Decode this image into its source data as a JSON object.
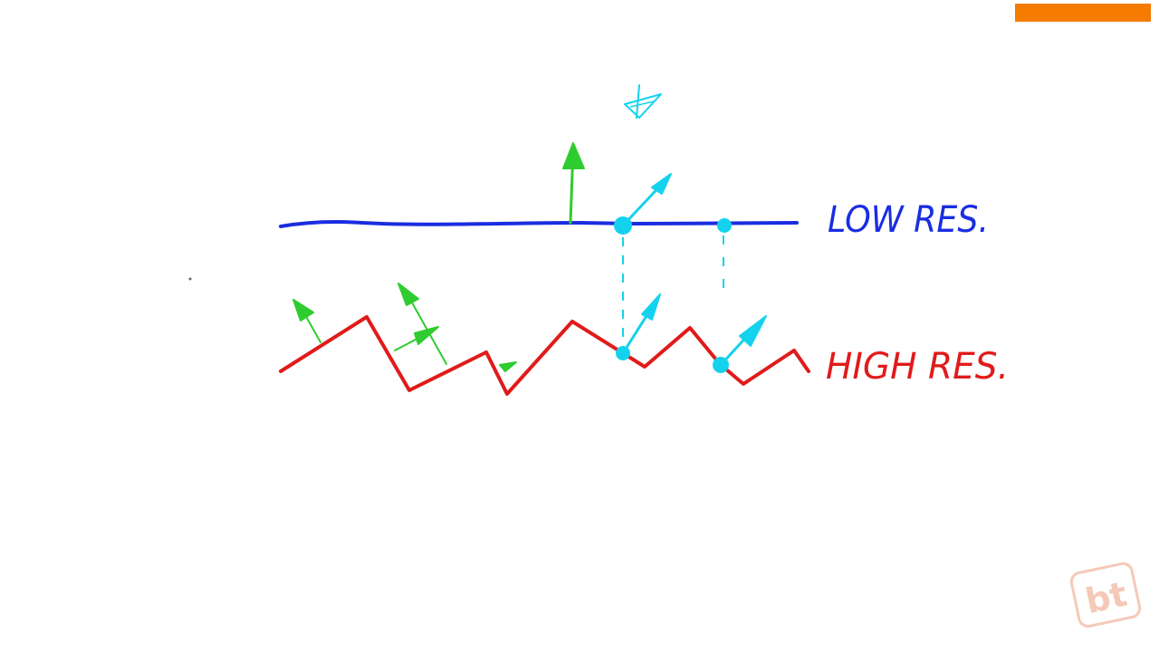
{
  "labels": {
    "low_res": "LOW RES.",
    "high_res": "HIGH RES."
  },
  "watermark": {
    "text": "bt"
  },
  "colors": {
    "accent_bar": "#f57c00",
    "low_res_line": "#1a2de0",
    "high_res_line": "#e01b1b",
    "normal_arrow_green": "#2ecc2e",
    "sample_cyan": "#14d2ee",
    "watermark": "#f5c9b8"
  },
  "icons": {
    "viewer": "eye-icon",
    "logo": "bt-logo"
  }
}
